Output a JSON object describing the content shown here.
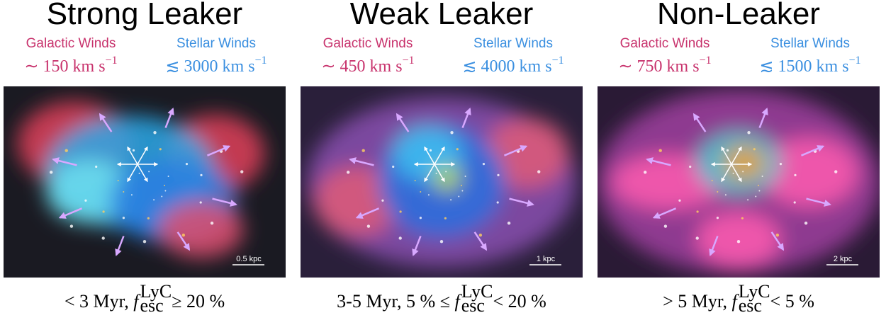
{
  "panels": [
    {
      "title": "Strong Leaker",
      "galactic_label": "Galactic Winds",
      "galactic_value": "∼ 150 km s",
      "galactic_sup": "−1",
      "stellar_label": "Stellar Winds",
      "stellar_value": "≲ 3000 km s",
      "stellar_sup": "−1",
      "scale": "0.5 kpc",
      "caption": {
        "pre": "< 3 Myr, ",
        "f": "f",
        "sup": "LyC",
        "sub": "esc",
        "post": " ≥ 20 %"
      }
    },
    {
      "title": "Weak Leaker",
      "galactic_label": "Galactic Winds",
      "galactic_value": "∼ 450 km s",
      "galactic_sup": "−1",
      "stellar_label": "Stellar Winds",
      "stellar_value": "≲ 4000 km s",
      "stellar_sup": "−1",
      "scale": "1 kpc",
      "caption": {
        "pre": "3-5 Myr, 5 % ≤ ",
        "f": "f",
        "sup": "LyC",
        "sub": "esc",
        "post": " < 20 %"
      }
    },
    {
      "title": "Non-Leaker",
      "galactic_label": "Galactic Winds",
      "galactic_value": "∼ 750 km s",
      "galactic_sup": "−1",
      "stellar_label": "Stellar Winds",
      "stellar_value": "≲ 1500 km s",
      "stellar_sup": "−1",
      "scale": "2 kpc",
      "caption": {
        "pre": "> 5 Myr, ",
        "f": "f",
        "sup": "LyC",
        "sub": "esc",
        "post": " < 5 %"
      }
    }
  ]
}
